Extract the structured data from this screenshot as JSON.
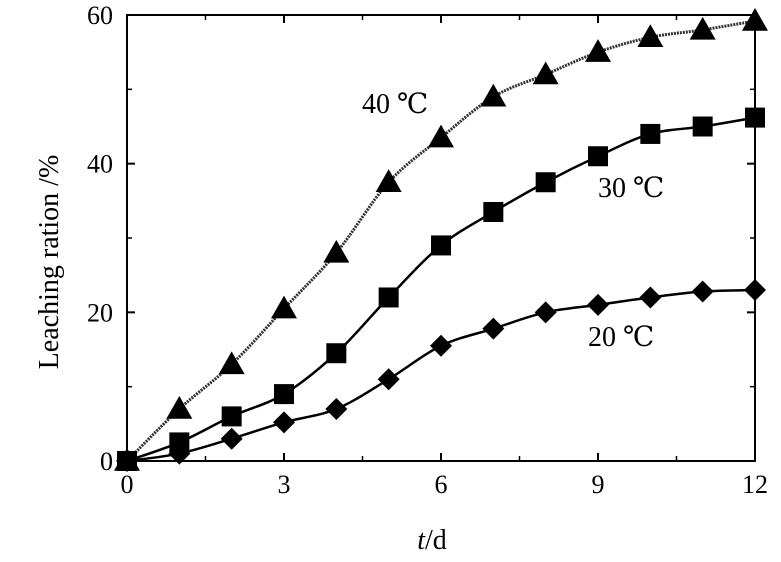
{
  "chart_data": {
    "type": "line",
    "title": "",
    "xlabel_italic": "t",
    "xlabel_rest": "/d",
    "ylabel": "Leaching ration /%",
    "xlim": [
      0,
      12
    ],
    "ylim": [
      0,
      60
    ],
    "xticks": [
      0,
      3,
      6,
      9,
      12
    ],
    "yticks": [
      0,
      20,
      40,
      60
    ],
    "grid": false,
    "legend": "none",
    "x": [
      0,
      1,
      2,
      3,
      4,
      5,
      6,
      7,
      8,
      9,
      10,
      11,
      12
    ],
    "series": [
      {
        "name": "40 ℃",
        "marker": "triangle",
        "values": [
          0,
          7,
          13,
          20.5,
          28,
          37.5,
          43.5,
          49,
          52,
          55,
          57,
          58,
          59.2
        ]
      },
      {
        "name": "30 ℃",
        "marker": "square",
        "values": [
          0,
          2.5,
          6,
          9,
          14.5,
          22,
          29,
          33.5,
          37.5,
          41,
          44,
          45,
          46.2
        ]
      },
      {
        "name": "20 ℃",
        "marker": "diamond",
        "values": [
          0,
          1,
          3,
          5.2,
          7,
          11,
          15.5,
          17.8,
          20,
          21,
          22,
          22.8,
          23
        ]
      }
    ]
  }
}
